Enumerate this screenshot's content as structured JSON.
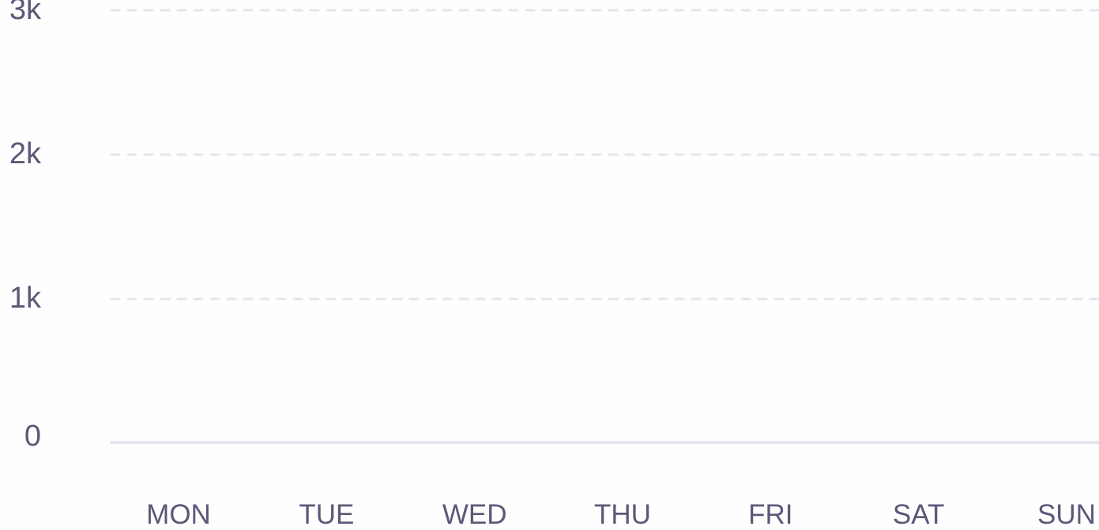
{
  "chart_data": {
    "type": "bar",
    "categories": [
      "MON",
      "TUE",
      "WED",
      "THU",
      "FRI",
      "SAT",
      "SUN"
    ],
    "series": [
      {
        "values": [
          0,
          0,
          0,
          0,
          0,
          0,
          0
        ]
      }
    ],
    "yticks": [
      "0",
      "1k",
      "2k",
      "3k"
    ],
    "ylim": [
      0,
      3000
    ],
    "title": "",
    "xlabel": "",
    "ylabel": "",
    "grid": true,
    "colors": {
      "label": "#5b5878",
      "grid": "#e6e4ee",
      "baseline": "#e6e4ee"
    }
  }
}
